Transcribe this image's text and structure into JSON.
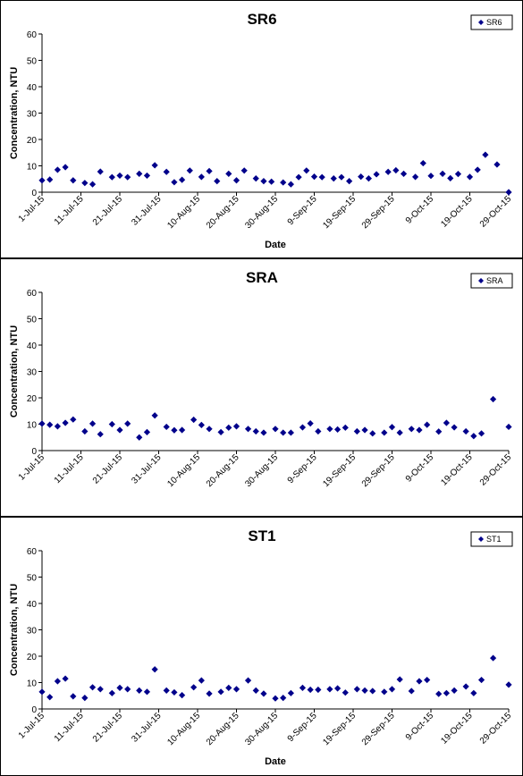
{
  "chart_data": [
    {
      "type": "scatter",
      "title": "SR6",
      "xlabel": "Date",
      "ylabel": "Concentration, NTU",
      "ylim": [
        0,
        60
      ],
      "yticks": [
        "0",
        "10",
        "20",
        "30",
        "40",
        "50",
        "60"
      ],
      "xlim": [
        "2015-07-01",
        "2015-10-29"
      ],
      "xticks": [
        "1-Jul-15",
        "11-Jul-15",
        "21-Jul-15",
        "31-Jul-15",
        "10-Aug-15",
        "20-Aug-15",
        "30-Aug-15",
        "9-Sep-15",
        "19-Sep-15",
        "29-Sep-15",
        "9-Oct-15",
        "19-Oct-15",
        "29-Oct-15"
      ],
      "grid": false,
      "legend_position": "top-right",
      "series": [
        {
          "name": "SR6",
          "color": "#00008B",
          "x": [
            "2015-07-01",
            "2015-07-03",
            "2015-07-05",
            "2015-07-07",
            "2015-07-09",
            "2015-07-12",
            "2015-07-14",
            "2015-07-16",
            "2015-07-19",
            "2015-07-21",
            "2015-07-23",
            "2015-07-26",
            "2015-07-28",
            "2015-07-30",
            "2015-08-02",
            "2015-08-04",
            "2015-08-06",
            "2015-08-08",
            "2015-08-11",
            "2015-08-13",
            "2015-08-15",
            "2015-08-18",
            "2015-08-20",
            "2015-08-22",
            "2015-08-25",
            "2015-08-27",
            "2015-08-29",
            "2015-09-01",
            "2015-09-03",
            "2015-09-05",
            "2015-09-07",
            "2015-09-09",
            "2015-09-11",
            "2015-09-14",
            "2015-09-16",
            "2015-09-18",
            "2015-09-21",
            "2015-09-23",
            "2015-09-25",
            "2015-09-28",
            "2015-09-30",
            "2015-10-02",
            "2015-10-05",
            "2015-10-07",
            "2015-10-09",
            "2015-10-12",
            "2015-10-14",
            "2015-10-16",
            "2015-10-19",
            "2015-10-21",
            "2015-10-23",
            "2015-10-26",
            "2015-10-29"
          ],
          "y": [
            4.5,
            4.8,
            8.5,
            9.5,
            4.5,
            3.5,
            3.0,
            7.8,
            5.7,
            6.3,
            5.7,
            7.0,
            6.3,
            10.2,
            7.7,
            3.8,
            4.7,
            8.2,
            5.8,
            8.0,
            4.2,
            7.0,
            4.5,
            8.2,
            5.2,
            4.2,
            4.0,
            3.7,
            3.0,
            5.7,
            8.2,
            5.9,
            5.7,
            5.2,
            5.7,
            4.2,
            5.9,
            5.2,
            6.8,
            7.7,
            8.3,
            7.0,
            5.8,
            11.0,
            6.2,
            7.0,
            5.3,
            6.9,
            5.8,
            8.5,
            14.2,
            10.5,
            0
          ]
        }
      ]
    },
    {
      "type": "scatter",
      "title": "SRA",
      "xlabel": "",
      "ylabel": "Concentration, NTU",
      "ylim": [
        0,
        60
      ],
      "yticks": [
        "0",
        "10",
        "20",
        "30",
        "40",
        "50",
        "60"
      ],
      "xlim": [
        "2015-07-01",
        "2015-10-29"
      ],
      "xticks": [
        "1-Jul-15",
        "11-Jul-15",
        "21-Jul-15",
        "31-Jul-15",
        "10-Aug-15",
        "20-Aug-15",
        "30-Aug-15",
        "9-Sep-15",
        "19-Sep-15",
        "29-Sep-15",
        "9-Oct-15",
        "19-Oct-15",
        "29-Oct-15"
      ],
      "grid": false,
      "legend_position": "top-right",
      "series": [
        {
          "name": "SRA",
          "color": "#00008B",
          "x": [
            "2015-07-01",
            "2015-07-03",
            "2015-07-05",
            "2015-07-07",
            "2015-07-09",
            "2015-07-12",
            "2015-07-14",
            "2015-07-16",
            "2015-07-19",
            "2015-07-21",
            "2015-07-23",
            "2015-07-26",
            "2015-07-28",
            "2015-07-30",
            "2015-08-02",
            "2015-08-04",
            "2015-08-06",
            "2015-08-09",
            "2015-08-11",
            "2015-08-13",
            "2015-08-16",
            "2015-08-18",
            "2015-08-20",
            "2015-08-23",
            "2015-08-25",
            "2015-08-27",
            "2015-08-30",
            "2015-09-01",
            "2015-09-03",
            "2015-09-06",
            "2015-09-08",
            "2015-09-10",
            "2015-09-13",
            "2015-09-15",
            "2015-09-17",
            "2015-09-20",
            "2015-09-22",
            "2015-09-24",
            "2015-09-27",
            "2015-09-29",
            "2015-10-01",
            "2015-10-04",
            "2015-10-06",
            "2015-10-08",
            "2015-10-11",
            "2015-10-13",
            "2015-10-15",
            "2015-10-18",
            "2015-10-20",
            "2015-10-22",
            "2015-10-25",
            "2015-10-29"
          ],
          "y": [
            10.2,
            9.8,
            9.2,
            10.5,
            11.8,
            7.3,
            10.2,
            6.2,
            10.0,
            7.8,
            10.2,
            5.0,
            7.0,
            13.3,
            9.0,
            7.7,
            7.8,
            11.7,
            9.7,
            8.2,
            7.0,
            8.7,
            9.2,
            8.2,
            7.3,
            6.8,
            8.2,
            6.8,
            6.8,
            8.8,
            10.3,
            7.3,
            8.2,
            8.0,
            8.7,
            7.3,
            7.8,
            6.5,
            6.8,
            8.9,
            6.8,
            8.2,
            7.8,
            9.8,
            7.2,
            10.5,
            8.8,
            7.3,
            5.5,
            6.5,
            19.5,
            9.0
          ]
        }
      ]
    },
    {
      "type": "scatter",
      "title": "ST1",
      "xlabel": "Date",
      "ylabel": "Concentration, NTU",
      "ylim": [
        0,
        60
      ],
      "yticks": [
        "0",
        "10",
        "20",
        "30",
        "40",
        "50",
        "60"
      ],
      "xlim": [
        "2015-07-01",
        "2015-10-29"
      ],
      "xticks": [
        "1-Jul-15",
        "11-Jul-15",
        "21-Jul-15",
        "31-Jul-15",
        "10-Aug-15",
        "20-Aug-15",
        "30-Aug-15",
        "9-Sep-15",
        "19-Sep-15",
        "29-Sep-15",
        "9-Oct-15",
        "19-Oct-15",
        "29-Oct-15"
      ],
      "grid": false,
      "legend_position": "top-right",
      "series": [
        {
          "name": "ST1",
          "color": "#00008B",
          "x": [
            "2015-07-01",
            "2015-07-03",
            "2015-07-05",
            "2015-07-07",
            "2015-07-09",
            "2015-07-12",
            "2015-07-14",
            "2015-07-16",
            "2015-07-19",
            "2015-07-21",
            "2015-07-23",
            "2015-07-26",
            "2015-07-28",
            "2015-07-30",
            "2015-08-02",
            "2015-08-04",
            "2015-08-06",
            "2015-08-09",
            "2015-08-11",
            "2015-08-13",
            "2015-08-16",
            "2015-08-18",
            "2015-08-20",
            "2015-08-23",
            "2015-08-25",
            "2015-08-27",
            "2015-08-30",
            "2015-09-01",
            "2015-09-03",
            "2015-09-06",
            "2015-09-08",
            "2015-09-10",
            "2015-09-13",
            "2015-09-15",
            "2015-09-17",
            "2015-09-20",
            "2015-09-22",
            "2015-09-24",
            "2015-09-27",
            "2015-09-29",
            "2015-10-01",
            "2015-10-04",
            "2015-10-06",
            "2015-10-08",
            "2015-10-11",
            "2015-10-13",
            "2015-10-15",
            "2015-10-18",
            "2015-10-20",
            "2015-10-22",
            "2015-10-25",
            "2015-10-29"
          ],
          "y": [
            6.5,
            4.5,
            10.5,
            11.5,
            4.8,
            4.2,
            8.2,
            7.5,
            6.0,
            8.0,
            7.5,
            7.0,
            6.5,
            15.0,
            7.0,
            6.3,
            5.2,
            8.2,
            10.8,
            5.8,
            6.5,
            8.0,
            7.5,
            10.8,
            7.0,
            5.8,
            4.0,
            4.2,
            6.0,
            8.0,
            7.3,
            7.3,
            7.5,
            7.8,
            6.2,
            7.5,
            7.0,
            6.8,
            6.5,
            7.5,
            11.2,
            6.8,
            10.5,
            11.0,
            5.7,
            6.0,
            7.0,
            8.5,
            6.0,
            11.0,
            19.3,
            9.2
          ]
        }
      ]
    }
  ]
}
